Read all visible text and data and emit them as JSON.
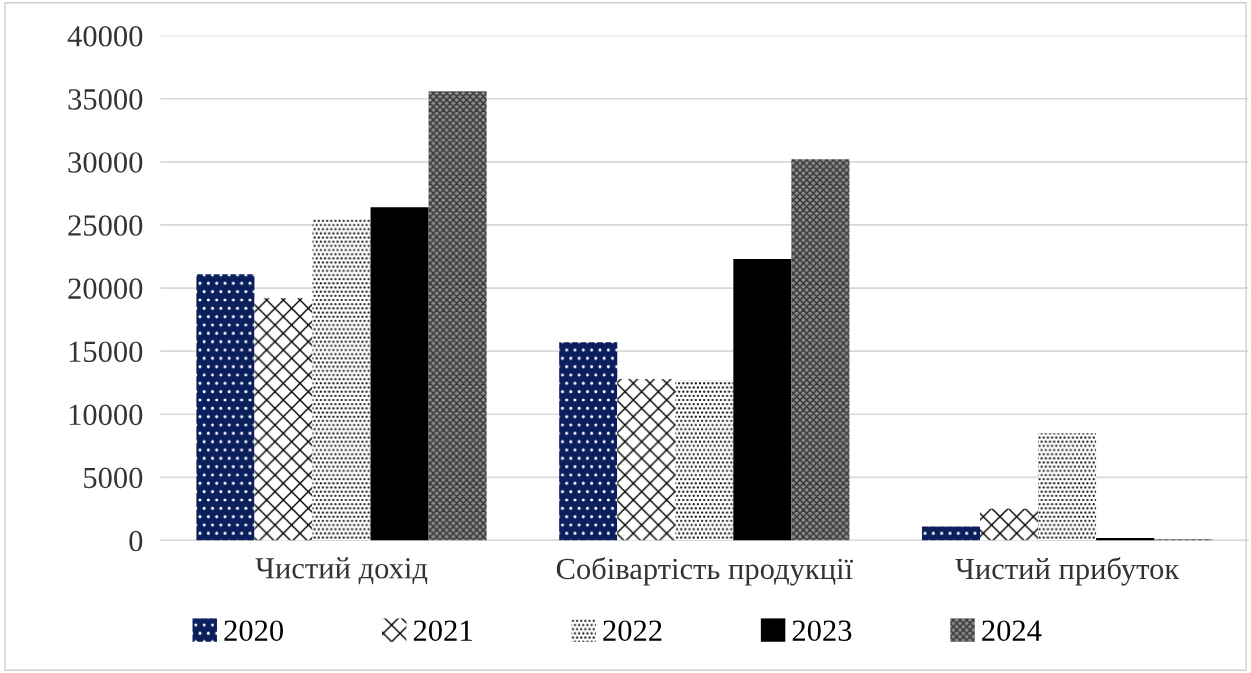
{
  "chart_data": {
    "type": "bar",
    "categories": [
      "Чистий дохід",
      "Собівартість продукції",
      "Чистий прибуток"
    ],
    "series": [
      {
        "name": "2020",
        "color": "#0b1f5c",
        "values": [
          21100,
          15700,
          1100
        ]
      },
      {
        "name": "2021",
        "color": "#ffffff",
        "values": [
          19200,
          12800,
          2500
        ]
      },
      {
        "name": "2022",
        "color": "#ffffff",
        "values": [
          25500,
          12700,
          8500
        ]
      },
      {
        "name": "2023",
        "color": "#000000",
        "values": [
          26400,
          22300,
          200
        ]
      },
      {
        "name": "2024",
        "color": "#8c8c8c",
        "values": [
          35600,
          30200,
          100
        ]
      }
    ],
    "ylim": [
      0,
      40000
    ],
    "yticks": [
      0,
      5000,
      10000,
      15000,
      20000,
      25000,
      30000,
      35000,
      40000
    ],
    "grid": "y",
    "legend": "bottom"
  }
}
